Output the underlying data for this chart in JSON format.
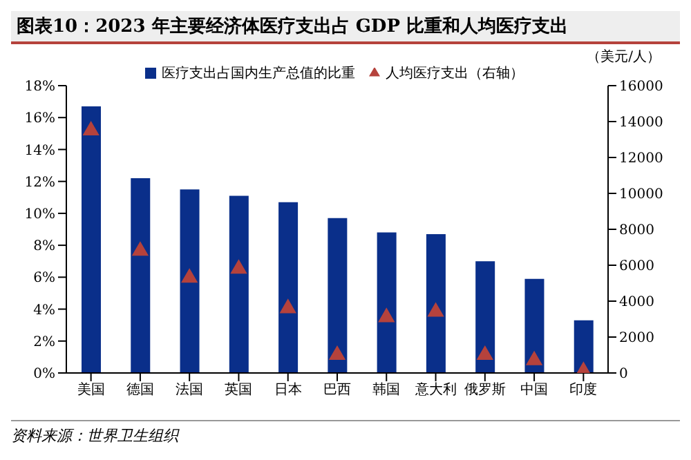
{
  "chart_data": {
    "type": "bar",
    "title": "图表10：2023 年主要经济体医疗支出占 GDP 比重和人均医疗支出",
    "categories": [
      "美国",
      "德国",
      "法国",
      "英国",
      "日本",
      "巴西",
      "韩国",
      "意大利",
      "俄罗斯",
      "中国",
      "印度"
    ],
    "series": [
      {
        "name": "医疗支出占国内生产总值的比重",
        "color": "#0a2f8a",
        "values": [
          16.7,
          12.2,
          11.5,
          11.1,
          10.7,
          9.7,
          8.8,
          8.7,
          7.0,
          5.9,
          3.3
        ]
      },
      {
        "name": "人均医疗支出（右轴）",
        "type": "scatter",
        "axis": "y2",
        "marker": "triangle",
        "color": "#b5423c",
        "values": [
          13500,
          6800,
          5300,
          5800,
          3600,
          1000,
          3100,
          3400,
          1000,
          700,
          100
        ]
      }
    ],
    "ylim": [
      0,
      18
    ],
    "yticks": [
      {
        "value": 0,
        "label": "0%"
      },
      {
        "value": 2,
        "label": "2%"
      },
      {
        "value": 4,
        "label": "4%"
      },
      {
        "value": 6,
        "label": "6%"
      },
      {
        "value": 8,
        "label": "8%"
      },
      {
        "value": 10,
        "label": "10%"
      },
      {
        "value": 12,
        "label": "12%"
      },
      {
        "value": 14,
        "label": "14%"
      },
      {
        "value": 16,
        "label": "16%"
      },
      {
        "value": 18,
        "label": "18%"
      }
    ],
    "y2label": "（美元/人）",
    "y2lim": [
      0,
      16000
    ],
    "y2ticks": [
      0,
      2000,
      4000,
      6000,
      8000,
      10000,
      12000,
      14000,
      16000
    ],
    "legend": "top",
    "grid": false,
    "annotations": [
      "资料来源：世界卫生组织"
    ]
  }
}
